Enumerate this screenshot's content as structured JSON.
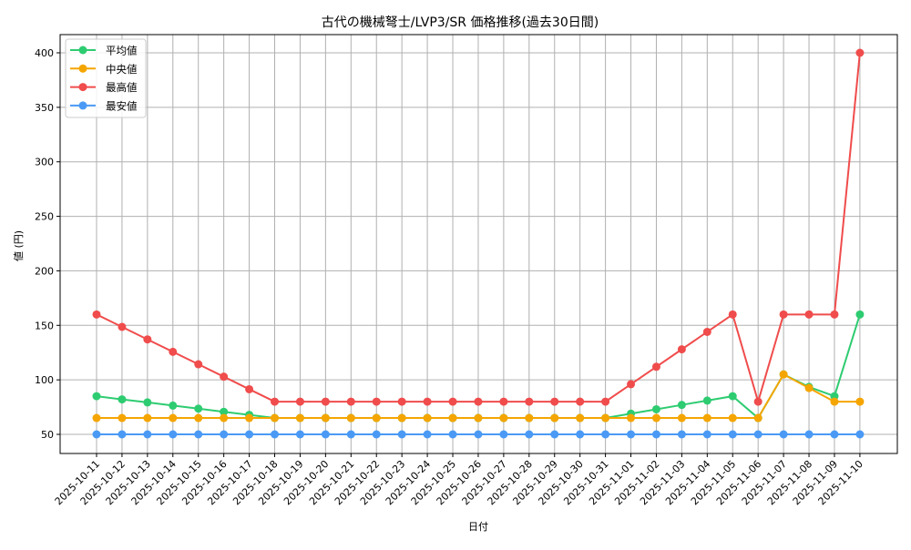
{
  "chart_data": {
    "type": "line",
    "title": "古代の機械弩士/LVP3/SR 価格推移(過去30日間)",
    "xlabel": "日付",
    "ylabel": "値 (円)",
    "ylim": [
      32,
      418
    ],
    "yticks": [
      50,
      100,
      150,
      200,
      250,
      300,
      350,
      400
    ],
    "grid": true,
    "legend_position": "upper left",
    "x": [
      "2025-10-11",
      "2025-10-12",
      "2025-10-13",
      "2025-10-14",
      "2025-10-15",
      "2025-10-16",
      "2025-10-17",
      "2025-10-18",
      "2025-10-19",
      "2025-10-20",
      "2025-10-21",
      "2025-10-22",
      "2025-10-23",
      "2025-10-24",
      "2025-10-25",
      "2025-10-26",
      "2025-10-27",
      "2025-10-28",
      "2025-10-29",
      "2025-10-30",
      "2025-10-31",
      "2025-11-01",
      "2025-11-02",
      "2025-11-03",
      "2025-11-04",
      "2025-11-05",
      "2025-11-06",
      "2025-11-07",
      "2025-11-08",
      "2025-11-09",
      "2025-11-10"
    ],
    "series": [
      {
        "name": "平均値",
        "color": "#2ecc71",
        "values": [
          85,
          82.1,
          79.3,
          76.4,
          73.6,
          70.7,
          67.9,
          65,
          65,
          65,
          65,
          65,
          65,
          65,
          65,
          65,
          65,
          65,
          65,
          65,
          65,
          69,
          73,
          77,
          81,
          85,
          65,
          105,
          93.5,
          85,
          160
        ]
      },
      {
        "name": "中央値",
        "color": "#f5a500",
        "values": [
          65,
          65,
          65,
          65,
          65,
          65,
          65,
          65,
          65,
          65,
          65,
          65,
          65,
          65,
          65,
          65,
          65,
          65,
          65,
          65,
          65,
          65,
          65,
          65,
          65,
          65,
          65,
          105,
          92.5,
          80,
          80
        ]
      },
      {
        "name": "最高値",
        "color": "#f04c4c",
        "values": [
          160,
          148.6,
          137.1,
          125.7,
          114.3,
          102.9,
          91.4,
          80,
          80,
          80,
          80,
          80,
          80,
          80,
          80,
          80,
          80,
          80,
          80,
          80,
          80,
          96,
          112,
          128,
          144,
          160,
          80,
          160,
          160,
          160,
          400
        ]
      },
      {
        "name": "最安値",
        "color": "#4a9af5",
        "values": [
          50,
          50,
          50,
          50,
          50,
          50,
          50,
          50,
          50,
          50,
          50,
          50,
          50,
          50,
          50,
          50,
          50,
          50,
          50,
          50,
          50,
          50,
          50,
          50,
          50,
          50,
          50,
          50,
          50,
          50,
          50
        ]
      }
    ]
  }
}
